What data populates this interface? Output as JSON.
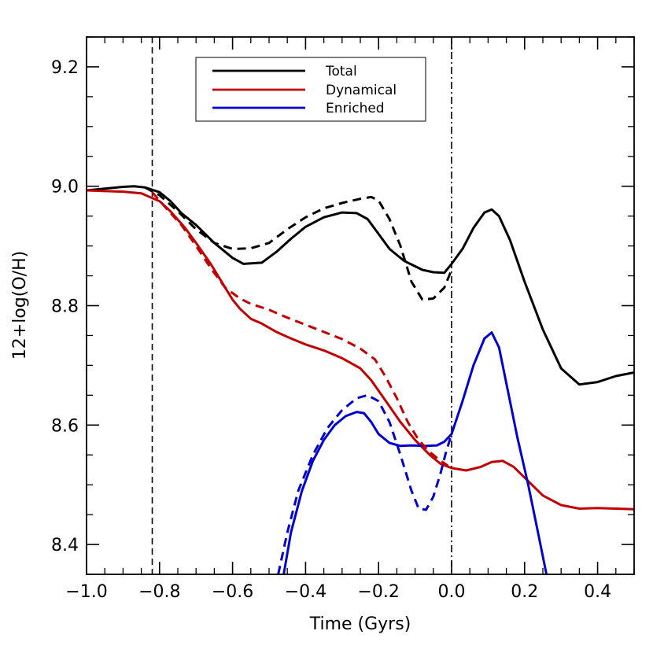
{
  "chart_data": {
    "type": "line",
    "xlabel": "Time (Gyrs)",
    "ylabel": "12+log(O/H)",
    "xlim": [
      -1.0,
      0.5
    ],
    "ylim": [
      8.35,
      9.25
    ],
    "x_ticks": [
      -1.0,
      -0.8,
      -0.6,
      -0.4,
      -0.2,
      0.0,
      0.2,
      0.4
    ],
    "x_tick_labels": [
      "−1.0",
      "−0.8",
      "−0.6",
      "−0.4",
      "−0.2",
      "0.0",
      "0.2",
      "0.4"
    ],
    "y_ticks": [
      8.4,
      8.6,
      8.8,
      9.0,
      9.2
    ],
    "y_tick_labels": [
      "8.4",
      "8.6",
      "8.8",
      "9.0",
      "9.2"
    ],
    "legend_position": "top-center",
    "vlines": [
      {
        "x": -0.82,
        "style": "dashed"
      },
      {
        "x": 0.0,
        "style": "dash-dot"
      }
    ],
    "series": [
      {
        "name": "Total",
        "color": "#000000",
        "style": "solid",
        "points": [
          [
            -1.0,
            8.993
          ],
          [
            -0.95,
            8.996
          ],
          [
            -0.9,
            8.999
          ],
          [
            -0.87,
            9.0
          ],
          [
            -0.84,
            8.998
          ],
          [
            -0.8,
            8.99
          ],
          [
            -0.77,
            8.975
          ],
          [
            -0.74,
            8.955
          ],
          [
            -0.7,
            8.935
          ],
          [
            -0.65,
            8.905
          ],
          [
            -0.6,
            8.88
          ],
          [
            -0.57,
            8.87
          ],
          [
            -0.52,
            8.872
          ],
          [
            -0.48,
            8.89
          ],
          [
            -0.44,
            8.912
          ],
          [
            -0.4,
            8.932
          ],
          [
            -0.35,
            8.948
          ],
          [
            -0.3,
            8.956
          ],
          [
            -0.26,
            8.955
          ],
          [
            -0.23,
            8.945
          ],
          [
            -0.2,
            8.92
          ],
          [
            -0.17,
            8.895
          ],
          [
            -0.13,
            8.875
          ],
          [
            -0.08,
            8.86
          ],
          [
            -0.05,
            8.856
          ],
          [
            -0.02,
            8.855
          ],
          [
            0.0,
            8.87
          ],
          [
            0.03,
            8.895
          ],
          [
            0.06,
            8.93
          ],
          [
            0.09,
            8.956
          ],
          [
            0.11,
            8.961
          ],
          [
            0.13,
            8.95
          ],
          [
            0.16,
            8.91
          ],
          [
            0.2,
            8.84
          ],
          [
            0.25,
            8.76
          ],
          [
            0.3,
            8.695
          ],
          [
            0.35,
            8.668
          ],
          [
            0.4,
            8.672
          ],
          [
            0.45,
            8.682
          ],
          [
            0.5,
            8.688
          ]
        ]
      },
      {
        "name": "Dynamical",
        "color": "#c00000",
        "style": "solid",
        "points": [
          [
            -1.0,
            8.993
          ],
          [
            -0.9,
            8.991
          ],
          [
            -0.85,
            8.988
          ],
          [
            -0.8,
            8.975
          ],
          [
            -0.77,
            8.958
          ],
          [
            -0.73,
            8.93
          ],
          [
            -0.7,
            8.905
          ],
          [
            -0.66,
            8.87
          ],
          [
            -0.62,
            8.83
          ],
          [
            -0.6,
            8.81
          ],
          [
            -0.58,
            8.795
          ],
          [
            -0.55,
            8.778
          ],
          [
            -0.52,
            8.77
          ],
          [
            -0.48,
            8.756
          ],
          [
            -0.44,
            8.745
          ],
          [
            -0.4,
            8.735
          ],
          [
            -0.35,
            8.725
          ],
          [
            -0.3,
            8.712
          ],
          [
            -0.25,
            8.695
          ],
          [
            -0.22,
            8.675
          ],
          [
            -0.18,
            8.64
          ],
          [
            -0.14,
            8.605
          ],
          [
            -0.1,
            8.575
          ],
          [
            -0.06,
            8.55
          ],
          [
            -0.03,
            8.535
          ],
          [
            0.0,
            8.528
          ],
          [
            0.04,
            8.524
          ],
          [
            0.08,
            8.53
          ],
          [
            0.11,
            8.538
          ],
          [
            0.14,
            8.54
          ],
          [
            0.17,
            8.53
          ],
          [
            0.2,
            8.512
          ],
          [
            0.25,
            8.482
          ],
          [
            0.3,
            8.466
          ],
          [
            0.35,
            8.46
          ],
          [
            0.4,
            8.461
          ],
          [
            0.45,
            8.46
          ],
          [
            0.5,
            8.459
          ]
        ]
      },
      {
        "name": "Enriched",
        "color": "#0000cc",
        "style": "solid",
        "points": [
          [
            -0.46,
            8.35
          ],
          [
            -0.44,
            8.42
          ],
          [
            -0.41,
            8.49
          ],
          [
            -0.38,
            8.54
          ],
          [
            -0.35,
            8.575
          ],
          [
            -0.32,
            8.6
          ],
          [
            -0.29,
            8.615
          ],
          [
            -0.26,
            8.622
          ],
          [
            -0.24,
            8.62
          ],
          [
            -0.22,
            8.605
          ],
          [
            -0.2,
            8.585
          ],
          [
            -0.17,
            8.57
          ],
          [
            -0.14,
            8.565
          ],
          [
            -0.11,
            8.566
          ],
          [
            -0.07,
            8.565
          ],
          [
            -0.04,
            8.566
          ],
          [
            -0.02,
            8.572
          ],
          [
            0.0,
            8.585
          ],
          [
            0.03,
            8.64
          ],
          [
            0.06,
            8.7
          ],
          [
            0.09,
            8.745
          ],
          [
            0.11,
            8.755
          ],
          [
            0.13,
            8.73
          ],
          [
            0.15,
            8.67
          ],
          [
            0.18,
            8.58
          ],
          [
            0.21,
            8.5
          ],
          [
            0.24,
            8.41
          ],
          [
            0.26,
            8.35
          ]
        ]
      },
      {
        "color": "#000000",
        "style": "dashed",
        "points": [
          [
            -0.84,
            8.998
          ],
          [
            -0.8,
            8.985
          ],
          [
            -0.75,
            8.958
          ],
          [
            -0.7,
            8.928
          ],
          [
            -0.65,
            8.905
          ],
          [
            -0.6,
            8.895
          ],
          [
            -0.55,
            8.896
          ],
          [
            -0.5,
            8.905
          ],
          [
            -0.45,
            8.928
          ],
          [
            -0.4,
            8.948
          ],
          [
            -0.35,
            8.963
          ],
          [
            -0.3,
            8.972
          ],
          [
            -0.25,
            8.979
          ],
          [
            -0.22,
            8.982
          ],
          [
            -0.2,
            8.976
          ],
          [
            -0.17,
            8.945
          ],
          [
            -0.14,
            8.9
          ],
          [
            -0.11,
            8.84
          ],
          [
            -0.08,
            8.81
          ],
          [
            -0.05,
            8.812
          ],
          [
            -0.02,
            8.83
          ],
          [
            0.0,
            8.86
          ]
        ]
      },
      {
        "color": "#c00000",
        "style": "dashed",
        "points": [
          [
            -0.82,
            8.99
          ],
          [
            -0.78,
            8.962
          ],
          [
            -0.74,
            8.935
          ],
          [
            -0.7,
            8.9
          ],
          [
            -0.66,
            8.863
          ],
          [
            -0.62,
            8.83
          ],
          [
            -0.58,
            8.812
          ],
          [
            -0.55,
            8.803
          ],
          [
            -0.5,
            8.793
          ],
          [
            -0.45,
            8.78
          ],
          [
            -0.4,
            8.768
          ],
          [
            -0.35,
            8.756
          ],
          [
            -0.3,
            8.744
          ],
          [
            -0.25,
            8.728
          ],
          [
            -0.21,
            8.71
          ],
          [
            -0.18,
            8.68
          ],
          [
            -0.15,
            8.645
          ],
          [
            -0.12,
            8.605
          ],
          [
            -0.09,
            8.575
          ],
          [
            -0.06,
            8.555
          ],
          [
            -0.03,
            8.54
          ],
          [
            -0.01,
            8.532
          ]
        ]
      },
      {
        "color": "#0000cc",
        "style": "dashed",
        "points": [
          [
            -0.475,
            8.35
          ],
          [
            -0.45,
            8.42
          ],
          [
            -0.42,
            8.49
          ],
          [
            -0.38,
            8.55
          ],
          [
            -0.34,
            8.595
          ],
          [
            -0.3,
            8.625
          ],
          [
            -0.26,
            8.645
          ],
          [
            -0.23,
            8.65
          ],
          [
            -0.2,
            8.64
          ],
          [
            -0.17,
            8.605
          ],
          [
            -0.14,
            8.55
          ],
          [
            -0.11,
            8.49
          ],
          [
            -0.09,
            8.46
          ],
          [
            -0.07,
            8.458
          ],
          [
            -0.05,
            8.48
          ],
          [
            -0.03,
            8.52
          ],
          [
            -0.015,
            8.555
          ],
          [
            0.0,
            8.585
          ]
        ]
      }
    ]
  }
}
